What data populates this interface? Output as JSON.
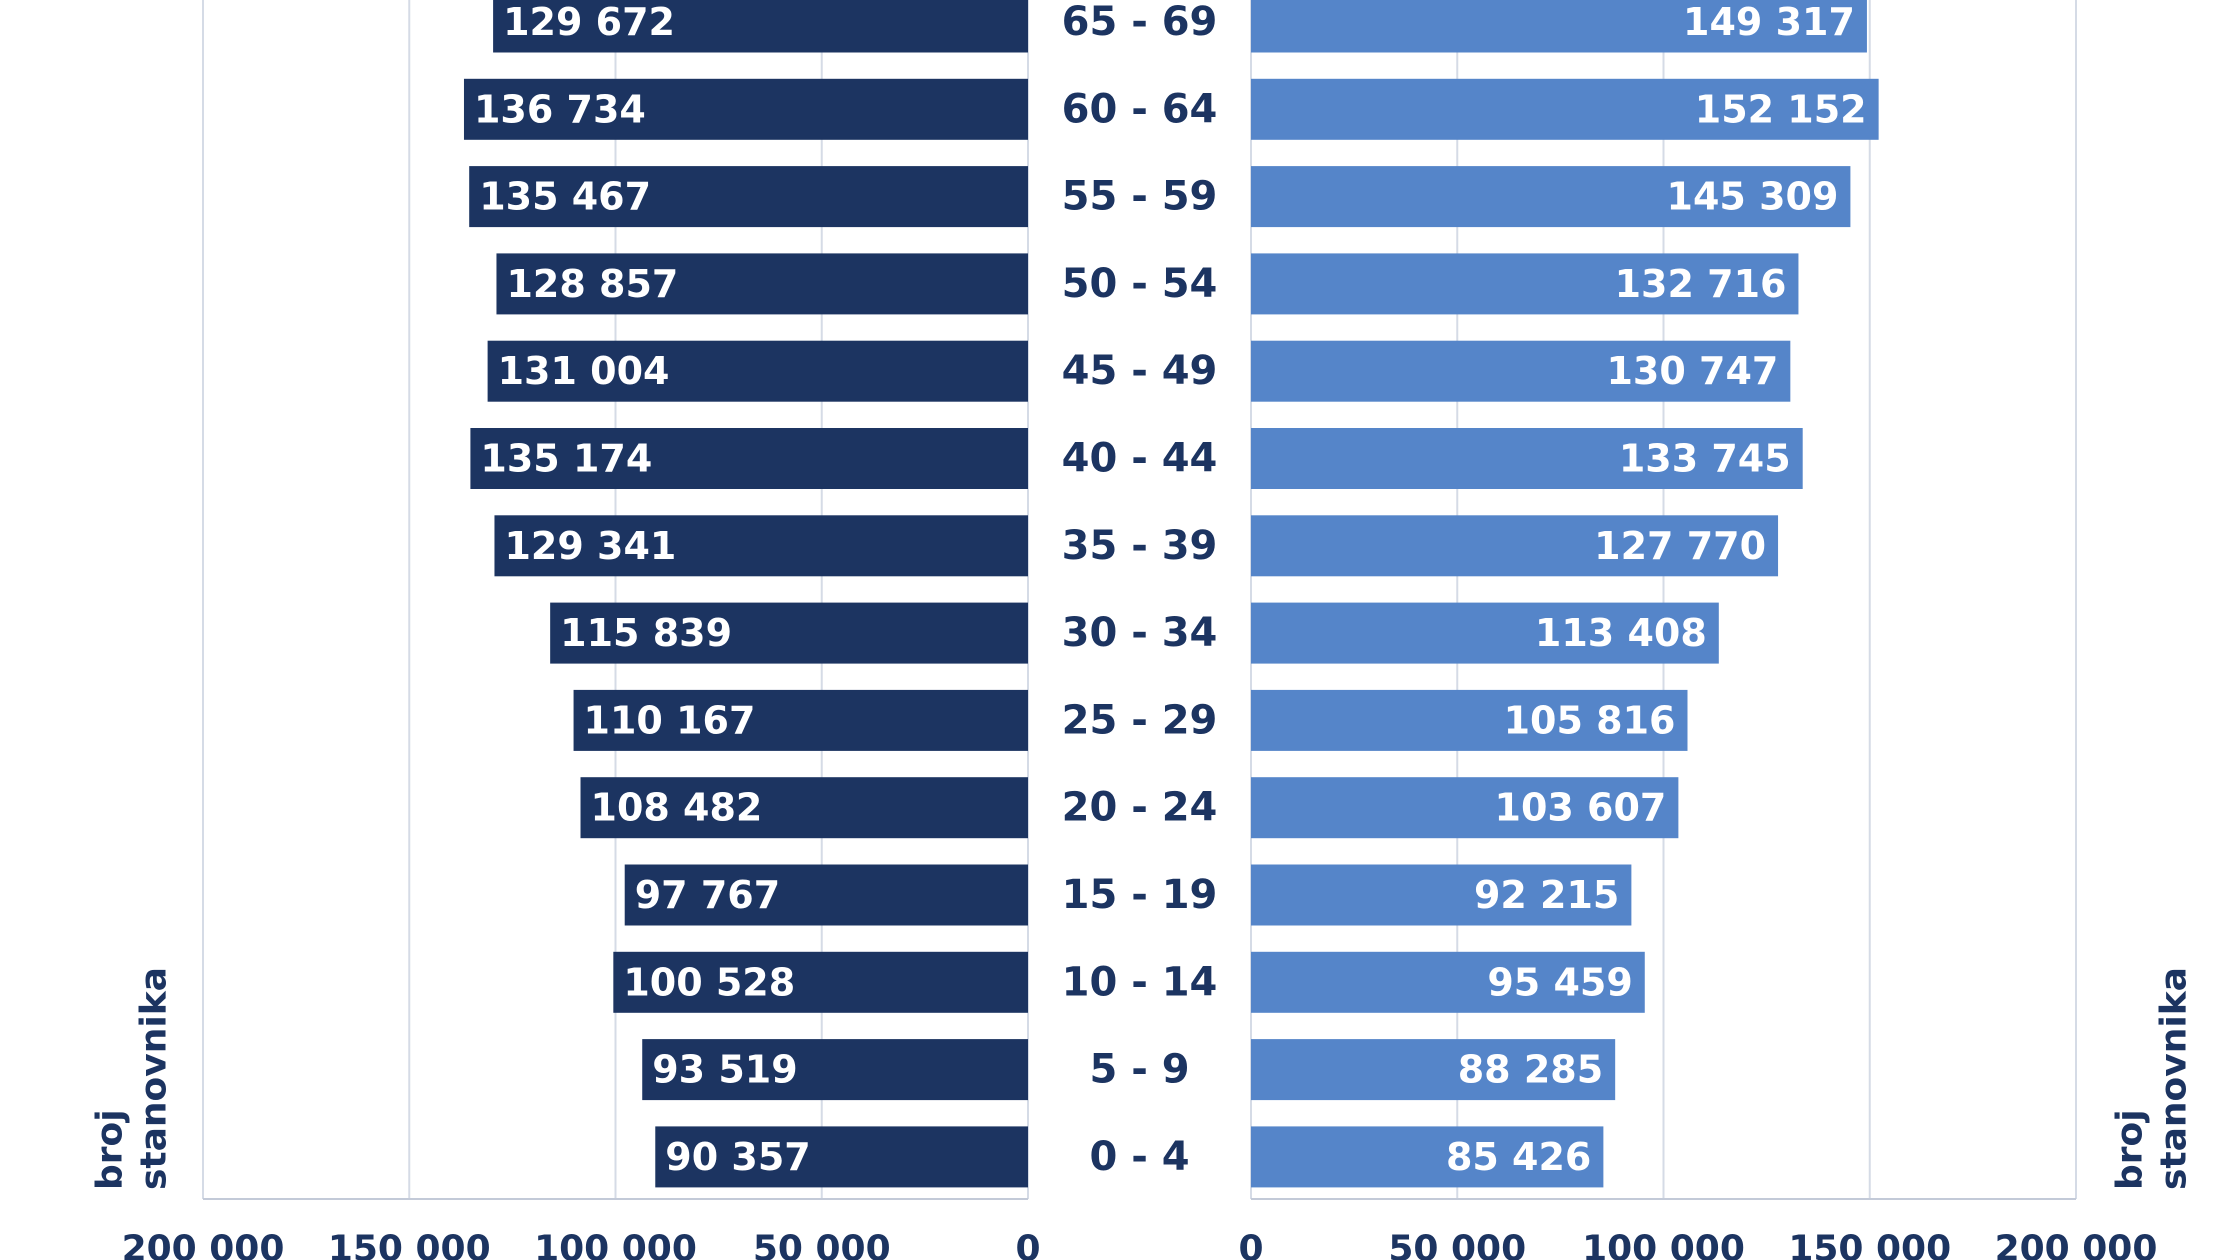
{
  "chart_data": {
    "type": "pyramid",
    "categories": [
      "65 - 69",
      "60 - 64",
      "55 - 59",
      "50 - 54",
      "45 - 49",
      "40 - 44",
      "35 - 39",
      "30 - 34",
      "25 - 29",
      "20 - 24",
      "15 - 19",
      "10 - 14",
      "5 - 9",
      "0 - 4"
    ],
    "series": [
      {
        "color": "#1c3461",
        "values": [
          129672,
          136734,
          135467,
          128857,
          131004,
          135174,
          129341,
          115839,
          110167,
          108482,
          97767,
          100528,
          93519,
          90357
        ],
        "value_labels": [
          "129 672",
          "136 734",
          "135 467",
          "128 857",
          "131 004",
          "135 174",
          "129 341",
          "115 839",
          "110 167",
          "108 482",
          "97 767",
          "100 528",
          "93 519",
          "90 357"
        ]
      },
      {
        "color": "#5585c9",
        "values": [
          149317,
          152152,
          145309,
          132716,
          130747,
          133745,
          127770,
          113408,
          105816,
          103607,
          92215,
          95459,
          88285,
          85426
        ],
        "value_labels": [
          "149 317",
          "152 152",
          "145 309",
          "132 716",
          "130 747",
          "133 745",
          "127 770",
          "113 408",
          "105 816",
          "103 607",
          "92 215",
          "95 459",
          "88 285",
          "85 426"
        ]
      }
    ],
    "xlim": [
      0,
      200000
    ],
    "xticks": [
      0,
      {
        "value": 50000,
        "label": "50 000"
      },
      {
        "value": 100000,
        "label": "100 000"
      },
      {
        "value": 150000,
        "label": "150 000"
      },
      {
        "value": 200000,
        "label": "200 000"
      }
    ],
    "axis_label": [
      "broj",
      "stanovnika"
    ],
    "grid": true
  }
}
